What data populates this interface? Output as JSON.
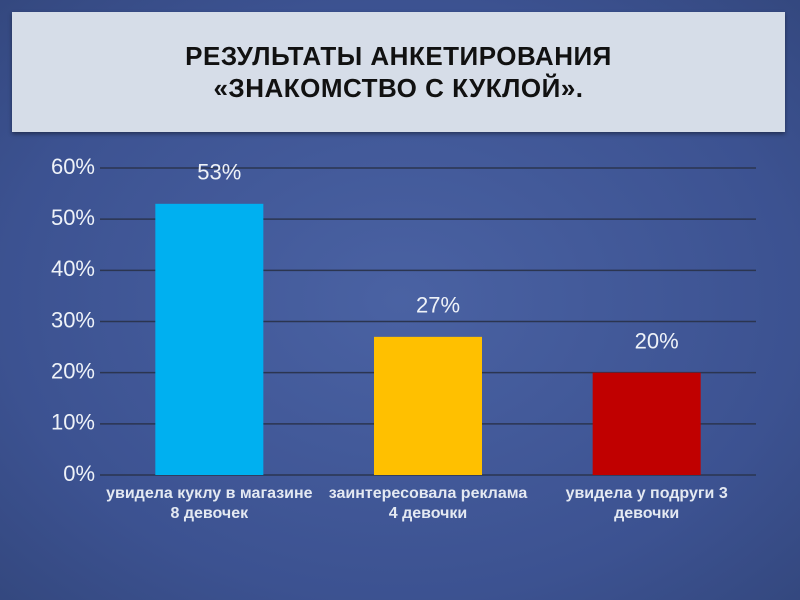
{
  "chart_data": {
    "type": "bar",
    "title": [
      "РЕЗУЛЬТАТЫ АНКЕТИРОВАНИЯ",
      "«ЗНАКОМСТВО С КУКЛОЙ»."
    ],
    "categories": [
      "увидела куклу в магазине 8 девочек",
      "заинтересовала реклама 4 девочки",
      "увидела у подруги 3 девочки"
    ],
    "values": [
      53,
      27,
      20
    ],
    "value_labels": [
      "53%",
      "27%",
      "20%"
    ],
    "colors": [
      "#00b0f0",
      "#ffc000",
      "#c00000"
    ],
    "ylim": [
      0,
      60
    ],
    "yticks": [
      {
        "value": 0,
        "label": "0%"
      },
      {
        "value": 10,
        "label": "10%"
      },
      {
        "value": 20,
        "label": "20%"
      },
      {
        "value": 30,
        "label": "30%"
      },
      {
        "value": 40,
        "label": "40%"
      },
      {
        "value": 50,
        "label": "50%"
      },
      {
        "value": 60,
        "label": "60%"
      }
    ],
    "grid": true
  }
}
